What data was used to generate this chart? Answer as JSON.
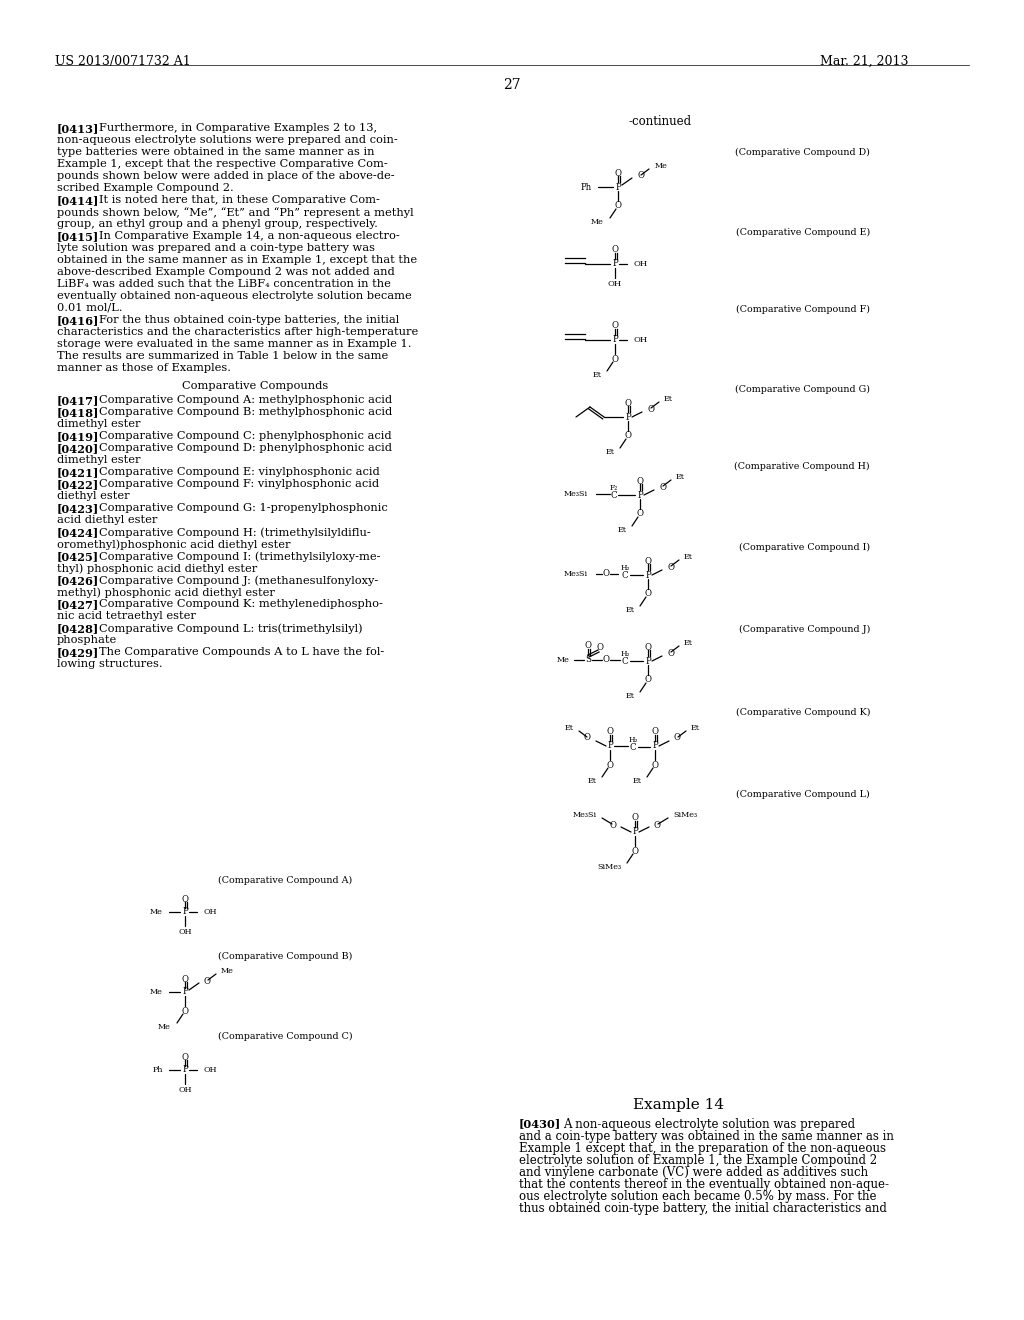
{
  "background_color": "#ffffff",
  "header_left": "US 2013/0071732 A1",
  "header_right": "Mar. 21, 2013",
  "page_number": "27",
  "continued_label": "-continued"
}
